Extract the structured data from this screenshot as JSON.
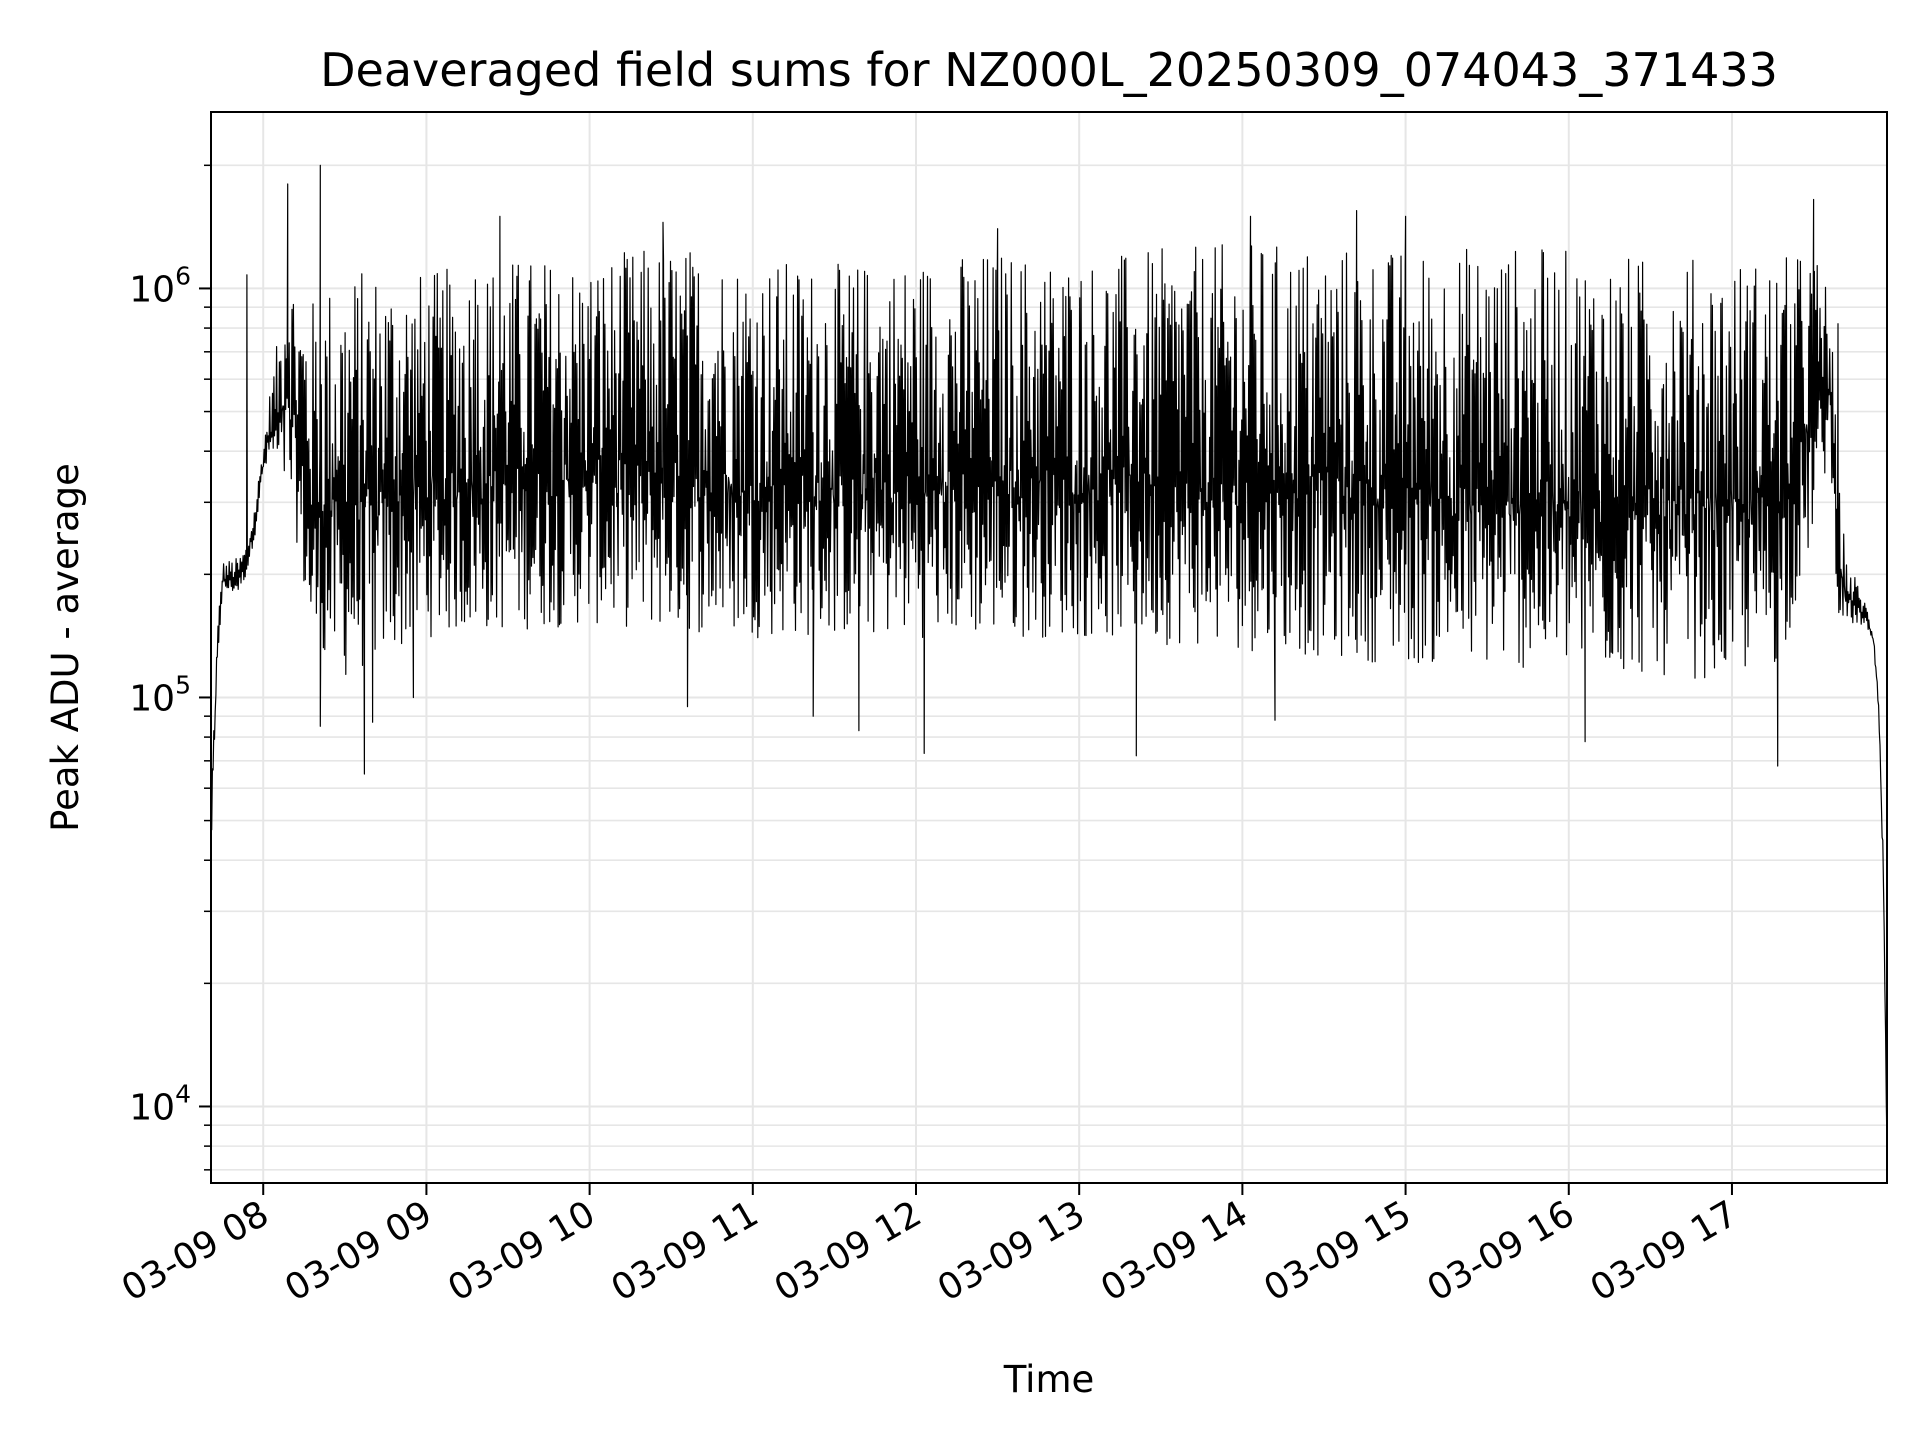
{
  "chart_data": {
    "type": "line",
    "title": "Deaveraged field sums for NZ000L_20250309_074043_371433",
    "xlabel": "Time",
    "ylabel": "Peak ADU - average",
    "x_range_hours": [
      7.68,
      17.95
    ],
    "x_ticks": [
      {
        "hour": 8,
        "label": "03-09 08"
      },
      {
        "hour": 9,
        "label": "03-09 09"
      },
      {
        "hour": 10,
        "label": "03-09 10"
      },
      {
        "hour": 11,
        "label": "03-09 11"
      },
      {
        "hour": 12,
        "label": "03-09 12"
      },
      {
        "hour": 13,
        "label": "03-09 13"
      },
      {
        "hour": 14,
        "label": "03-09 14"
      },
      {
        "hour": 15,
        "label": "03-09 15"
      },
      {
        "hour": 16,
        "label": "03-09 16"
      },
      {
        "hour": 17,
        "label": "03-09 17"
      }
    ],
    "y_scale": "log",
    "ylim": [
      6500,
      2700000
    ],
    "y_ticks": [
      {
        "value": 10000,
        "base": "10",
        "exp": "4"
      },
      {
        "value": 100000,
        "base": "10",
        "exp": "5"
      },
      {
        "value": 1000000,
        "base": "10",
        "exp": "6"
      }
    ],
    "grid": true,
    "line_color": "#000000",
    "grid_color": "#e6e6e6",
    "series": [
      {
        "envelope_upper": [
          [
            7.68,
            60000
          ],
          [
            7.72,
            150000
          ],
          [
            7.75,
            215000
          ],
          [
            7.85,
            220000
          ],
          [
            7.9,
            240000
          ],
          [
            7.95,
            300000
          ],
          [
            8.0,
            420000
          ],
          [
            8.05,
            600000
          ],
          [
            8.1,
            800000
          ],
          [
            8.15,
            1400000
          ],
          [
            8.2,
            1000000
          ],
          [
            8.3,
            950000
          ],
          [
            8.4,
            1050000
          ],
          [
            8.5,
            1100000
          ],
          [
            8.7,
            1150000
          ],
          [
            9.0,
            1100000
          ],
          [
            9.5,
            1200000
          ],
          [
            10.0,
            1200000
          ],
          [
            10.5,
            1300000
          ],
          [
            11.0,
            1200000
          ],
          [
            11.5,
            1150000
          ],
          [
            12.0,
            1200000
          ],
          [
            12.5,
            1250000
          ],
          [
            13.0,
            1200000
          ],
          [
            13.5,
            1250000
          ],
          [
            14.0,
            1300000
          ],
          [
            14.5,
            1300000
          ],
          [
            15.0,
            1250000
          ],
          [
            15.5,
            1300000
          ],
          [
            16.0,
            1250000
          ],
          [
            16.5,
            1200000
          ],
          [
            17.0,
            1200000
          ],
          [
            17.3,
            1200000
          ],
          [
            17.5,
            1250000
          ],
          [
            17.6,
            1000000
          ],
          [
            17.65,
            350000
          ],
          [
            17.7,
            220000
          ],
          [
            17.75,
            200000
          ],
          [
            17.82,
            170000
          ],
          [
            17.87,
            145000
          ],
          [
            17.9,
            100000
          ],
          [
            17.93,
            40000
          ],
          [
            17.95,
            8000
          ]
        ],
        "envelope_lower": [
          [
            7.68,
            40000
          ],
          [
            7.72,
            120000
          ],
          [
            7.75,
            180000
          ],
          [
            7.85,
            180000
          ],
          [
            7.9,
            200000
          ],
          [
            7.95,
            250000
          ],
          [
            8.0,
            350000
          ],
          [
            8.05,
            380000
          ],
          [
            8.1,
            330000
          ],
          [
            8.15,
            300000
          ],
          [
            8.2,
            250000
          ],
          [
            8.3,
            120000
          ],
          [
            8.5,
            110000
          ],
          [
            9.0,
            140000
          ],
          [
            10.0,
            150000
          ],
          [
            11.0,
            140000
          ],
          [
            12.0,
            140000
          ],
          [
            13.0,
            140000
          ],
          [
            14.0,
            130000
          ],
          [
            15.0,
            120000
          ],
          [
            16.0,
            115000
          ],
          [
            17.0,
            110000
          ],
          [
            17.3,
            120000
          ],
          [
            17.5,
            250000
          ],
          [
            17.6,
            400000
          ],
          [
            17.65,
            160000
          ],
          [
            17.7,
            150000
          ],
          [
            17.75,
            150000
          ],
          [
            17.82,
            150000
          ],
          [
            17.87,
            130000
          ],
          [
            17.9,
            90000
          ],
          [
            17.93,
            30000
          ],
          [
            17.95,
            7000
          ]
        ],
        "spikes": [
          [
            7.9,
            1080000
          ],
          [
            8.15,
            1800000
          ],
          [
            8.35,
            2000000
          ],
          [
            8.35,
            85000
          ],
          [
            8.62,
            65000
          ],
          [
            8.67,
            87000
          ],
          [
            8.92,
            100000
          ],
          [
            9.3,
            1050000
          ],
          [
            9.45,
            1500000
          ],
          [
            10.45,
            1450000
          ],
          [
            10.6,
            95000
          ],
          [
            11.37,
            90000
          ],
          [
            11.65,
            83000
          ],
          [
            12.05,
            73000
          ],
          [
            12.5,
            1400000
          ],
          [
            13.35,
            72000
          ],
          [
            14.05,
            1500000
          ],
          [
            14.2,
            88000
          ],
          [
            14.7,
            1550000
          ],
          [
            15.0,
            1500000
          ],
          [
            16.1,
            78000
          ],
          [
            17.28,
            68000
          ],
          [
            17.5,
            1650000
          ],
          [
            17.65,
            820000
          ]
        ]
      }
    ]
  }
}
